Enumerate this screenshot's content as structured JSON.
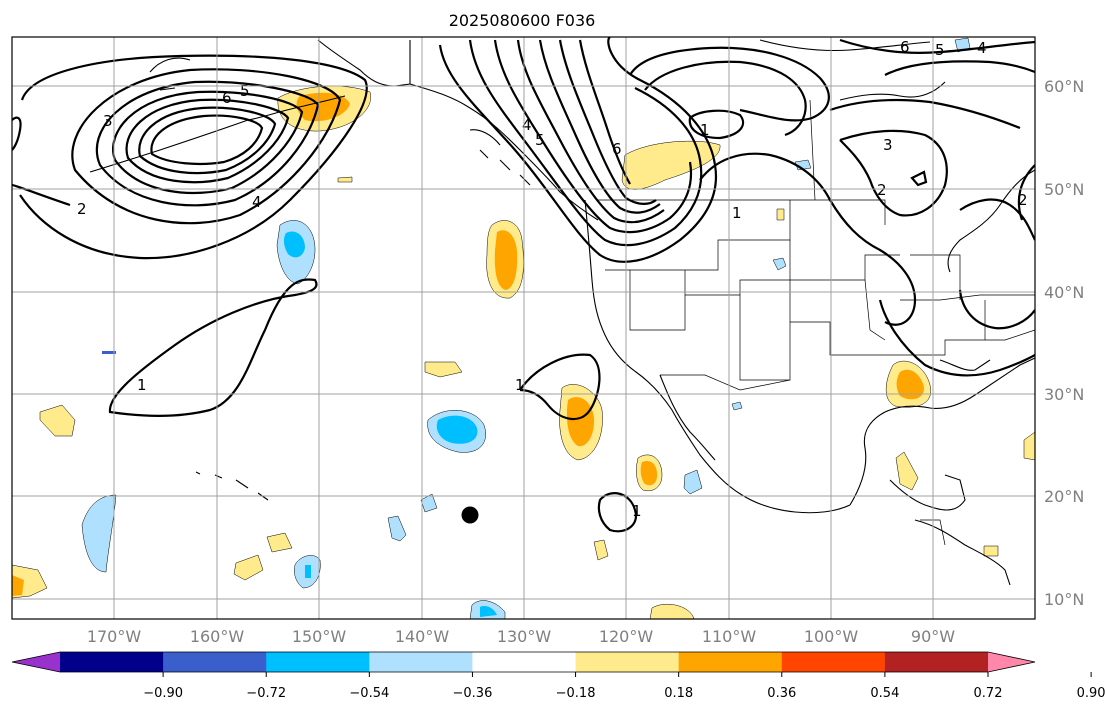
{
  "title": "2025080600 F036",
  "lat_labels": [
    "60°N",
    "50°N",
    "40°N",
    "30°N",
    "20°N",
    "10°N"
  ],
  "lon_labels": [
    "170°W",
    "160°W",
    "150°W",
    "140°W",
    "130°W",
    "120°W",
    "110°W",
    "100°W",
    "90°W"
  ],
  "colorbar": {
    "ticks": [
      "−0.90",
      "−0.72",
      "−0.54",
      "−0.36",
      "−0.18",
      "0.18",
      "0.36",
      "0.54",
      "0.72",
      "0.90"
    ],
    "colors": [
      "#9932cc",
      "#00008b",
      "#3a5fcd",
      "#00bfff",
      "#afe1ff",
      "#ffffff",
      "#ffeb8c",
      "#ffa500",
      "#ff4500",
      "#b22222",
      "#ff88aa"
    ]
  },
  "contour_labels": [
    "6",
    "5",
    "4",
    "3",
    "2",
    "1",
    "6",
    "5",
    "4",
    "1",
    "6",
    "5",
    "4",
    "3",
    "2",
    "1",
    "2",
    "1",
    "1"
  ],
  "marker": "station-dot"
}
